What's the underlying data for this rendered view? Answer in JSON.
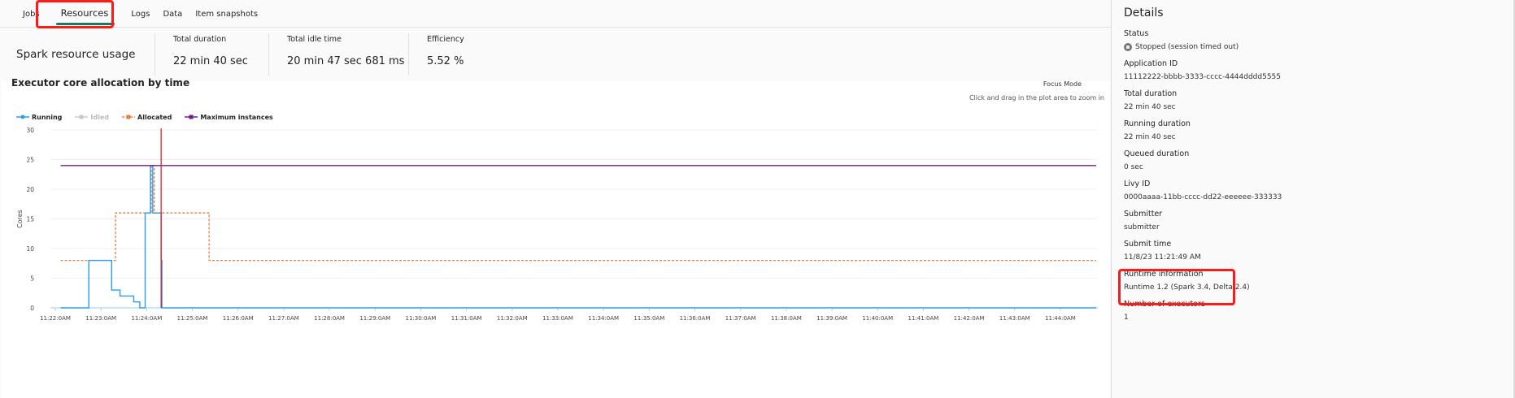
{
  "tabs": [
    {
      "label": "Jobs"
    },
    {
      "label": "Resources",
      "active": true
    },
    {
      "label": "Logs"
    },
    {
      "label": "Data"
    },
    {
      "label": "Item snapshots"
    }
  ],
  "summary": {
    "title": "Spark resource usage",
    "metrics": [
      {
        "label": "Total duration",
        "value": "22 min 40 sec"
      },
      {
        "label": "Total idle time",
        "value": "20 min 47 sec 681 ms"
      },
      {
        "label": "Efficiency",
        "value": "5.52 %"
      }
    ]
  },
  "chart": {
    "focus_mode": "Focus Mode",
    "hint": "Click and drag in the plot area to zoom in"
  },
  "chart_data": {
    "type": "line",
    "title": "Executor core allocation by time",
    "ylabel": "Cores",
    "ylim": [
      0,
      30
    ],
    "yticks": [
      0,
      5,
      10,
      15,
      20,
      25,
      30
    ],
    "xticks": [
      "11:22:0AM",
      "11:23:0AM",
      "11:24:0AM",
      "11:25:0AM",
      "11:26:0AM",
      "11:27:0AM",
      "11:28:0AM",
      "11:29:0AM",
      "11:30:0AM",
      "11:31:0AM",
      "11:32:0AM",
      "11:33:0AM",
      "11:34:0AM",
      "11:35:0AM",
      "11:36:0AM",
      "11:37:0AM",
      "11:38:0AM",
      "11:39:0AM",
      "11:40:0AM",
      "11:41:0AM",
      "11:42:0AM",
      "11:43:0AM",
      "11:44:0AM"
    ],
    "grid": true,
    "legend_position": "top-left",
    "step": true,
    "series": [
      {
        "name": "Running",
        "color": "#2b9bf4",
        "style": "solid",
        "points": [
          [
            "11:22:07",
            0
          ],
          [
            "11:22:44",
            8
          ],
          [
            "11:23:14",
            3
          ],
          [
            "11:23:25",
            2
          ],
          [
            "11:23:43",
            1
          ],
          [
            "11:23:51",
            0
          ],
          [
            "11:23:58",
            16
          ],
          [
            "11:24:05",
            24
          ],
          [
            "11:24:08",
            16
          ],
          [
            "11:24:19",
            8
          ],
          [
            "11:24:20",
            0
          ],
          [
            "11:44:47",
            0
          ]
        ]
      },
      {
        "name": "Idled",
        "color": "#c8c8c8",
        "style": "solid",
        "hidden": true,
        "points": []
      },
      {
        "name": "Allocated",
        "color": "#ee7b45",
        "style": "dashed",
        "points": [
          [
            "11:22:07",
            8
          ],
          [
            "11:23:19",
            16
          ],
          [
            "11:24:06",
            24
          ],
          [
            "11:24:10",
            16
          ],
          [
            "11:25:22",
            8
          ],
          [
            "11:44:47",
            8
          ]
        ]
      },
      {
        "name": "Maximum instances",
        "color": "#7a1a8a",
        "style": "solid",
        "points": [
          [
            "11:22:07",
            24
          ],
          [
            "11:44:47",
            24
          ]
        ]
      }
    ],
    "marker_line": {
      "time": "11:24:19",
      "color": "#e81010"
    }
  },
  "details": {
    "title": "Details",
    "items": [
      {
        "label": "Status",
        "value": "Stopped (session timed out)",
        "icon": "stopped-icon"
      },
      {
        "label": "Application ID",
        "value": "11112222-bbbb-3333-cccc-4444dddd5555"
      },
      {
        "label": "Total duration",
        "value": "22 min 40 sec"
      },
      {
        "label": "Running duration",
        "value": "22 min 40 sec"
      },
      {
        "label": "Queued duration",
        "value": "0 sec"
      },
      {
        "label": "Livy ID",
        "value": "0000aaaa-11bb-cccc-dd22-eeeeee-333333"
      },
      {
        "label": "Submitter",
        "value": "submitter"
      },
      {
        "label": "Submit time",
        "value": "11/8/23 11:21:49 AM"
      },
      {
        "label": "Runtime information",
        "value": "Runtime 1.2 (Spark 3.4, Delta 2.4)"
      },
      {
        "label": "Number of executors",
        "value": "1"
      }
    ]
  },
  "highlight_color": "#ff1a1a"
}
